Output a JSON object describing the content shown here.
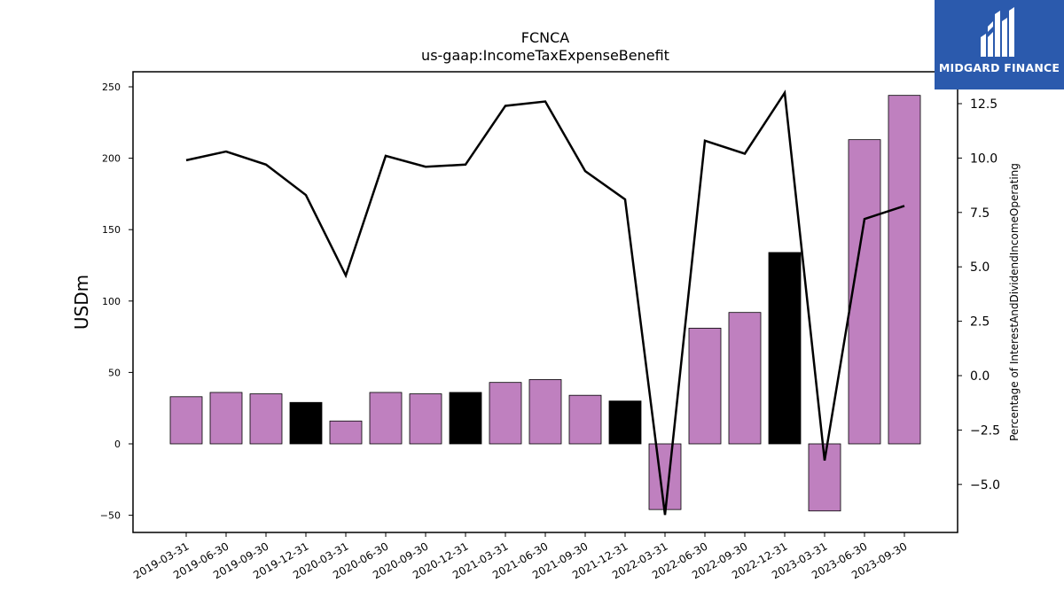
{
  "chart_data": {
    "type": "bar",
    "title": "FCNCA",
    "subtitle": "us-gaap:IncomeTaxExpenseBenefit",
    "ylabel": "USDm",
    "y2label": "Percentage of InterestAndDividendIncomeOperating",
    "ylim": [
      -60,
      260
    ],
    "y2lim": [
      -7.1,
      13.9
    ],
    "yticks": [
      -50,
      0,
      50,
      100,
      150,
      200,
      250
    ],
    "y2ticks": [
      -5.0,
      -2.5,
      0.0,
      2.5,
      5.0,
      7.5,
      10.0,
      12.5
    ],
    "categories": [
      "2019-03-31",
      "2019-06-30",
      "2019-09-30",
      "2019-12-31",
      "2020-03-31",
      "2020-06-30",
      "2020-09-30",
      "2020-12-31",
      "2021-03-31",
      "2021-06-30",
      "2021-09-30",
      "2021-12-31",
      "2022-03-31",
      "2022-06-30",
      "2022-09-30",
      "2022-12-31",
      "2023-03-31",
      "2023-06-30",
      "2023-09-30"
    ],
    "series": [
      {
        "type": "bar",
        "axis": "left",
        "values": [
          33,
          36,
          35,
          29,
          16,
          36,
          35,
          36,
          43,
          45,
          34,
          30,
          -46,
          81,
          92,
          134,
          -47,
          213,
          244
        ],
        "colors": [
          "#bf80bf",
          "#bf80bf",
          "#bf80bf",
          "#000000",
          "#bf80bf",
          "#bf80bf",
          "#bf80bf",
          "#000000",
          "#bf80bf",
          "#bf80bf",
          "#bf80bf",
          "#000000",
          "#bf80bf",
          "#bf80bf",
          "#bf80bf",
          "#000000",
          "#bf80bf",
          "#bf80bf",
          "#bf80bf"
        ]
      },
      {
        "type": "line",
        "axis": "right",
        "color": "#000000",
        "values": [
          9.9,
          10.3,
          9.7,
          8.3,
          4.6,
          10.1,
          9.6,
          9.7,
          12.4,
          12.6,
          9.4,
          8.1,
          -6.4,
          10.8,
          10.2,
          13.0,
          -3.9,
          7.2,
          7.8
        ]
      }
    ]
  },
  "logo": {
    "text": "MIDGARD FINANCE",
    "color": "#2b5aad"
  }
}
